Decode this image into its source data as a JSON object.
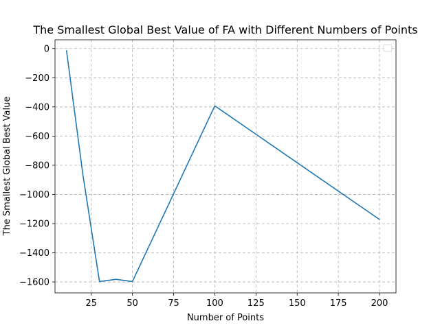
{
  "chart_data": {
    "type": "line",
    "title": "The Smallest Global Best Value of FA with Different Numbers of Points",
    "xlabel": "Number of Points",
    "ylabel": "The Smallest Global Best Value",
    "xlim": [
      3,
      210
    ],
    "ylim": [
      -1675,
      60
    ],
    "xticks": [
      25,
      50,
      75,
      100,
      125,
      150,
      175,
      200
    ],
    "yticks": [
      0,
      -200,
      -400,
      -600,
      -800,
      -1000,
      -1200,
      -1400,
      -1600
    ],
    "xtick_labels": [
      "25",
      "50",
      "75",
      "100",
      "125",
      "150",
      "175",
      "200"
    ],
    "ytick_labels": [
      "0",
      "−200",
      "−400",
      "−600",
      "−800",
      "−1000",
      "−1200",
      "−1400",
      "−1600"
    ],
    "grid": true,
    "legend": "upper-right",
    "series": [
      {
        "color": "#1f77b4",
        "x": [
          10,
          20,
          30,
          40,
          50,
          100,
          200
        ],
        "y": [
          -15,
          -870,
          -1597,
          -1582,
          -1597,
          -393,
          -1172
        ]
      }
    ]
  }
}
